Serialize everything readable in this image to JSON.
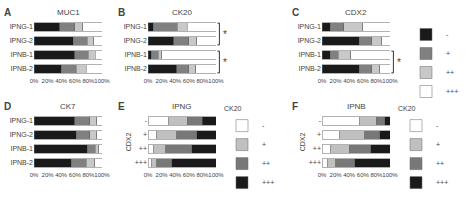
{
  "chart_data": [
    {
      "type": "bar",
      "orientation": "horizontal",
      "stacked": true,
      "grid": false,
      "title": "MUC1",
      "annotations": [
        {
          "text": "A"
        }
      ],
      "categories": [
        "IPNG-1",
        "IPNG-2",
        "IPNB-1",
        "IPNB-2"
      ],
      "series": [
        {
          "name": "-",
          "color": "#1a1a1a",
          "values": [
            0.38,
            0.58,
            0.6,
            0.4
          ]
        },
        {
          "name": "+",
          "color": "#808080",
          "values": [
            0.22,
            0.2,
            0.2,
            0.22
          ]
        },
        {
          "name": "++",
          "color": "#c8c8c8",
          "values": [
            0.12,
            0.1,
            0.1,
            0.15
          ]
        },
        {
          "name": "+++",
          "color": "#ffffff",
          "values": [
            0.28,
            0.12,
            0.1,
            0.23
          ]
        }
      ],
      "xlim": [
        0,
        1
      ],
      "xticks": [
        {
          "value": 0,
          "label": "0%"
        },
        {
          "value": 0.2,
          "label": "20%"
        },
        {
          "value": 0.4,
          "label": "40%"
        },
        {
          "value": 0.6,
          "label": "60%"
        },
        {
          "value": 0.8,
          "label": "80%"
        },
        {
          "value": 1.0,
          "label": "100%"
        }
      ]
    },
    {
      "type": "bar",
      "orientation": "horizontal",
      "stacked": true,
      "grid": false,
      "title": "CK20",
      "annotations": [
        {
          "text": "B"
        },
        {
          "text": "*",
          "categories": [
            "IPNG-1",
            "IPNG-2"
          ]
        },
        {
          "text": "*",
          "categories": [
            "IPNB-1",
            "IPNB-2"
          ]
        }
      ],
      "categories": [
        "IPNG-1",
        "IPNG-2",
        "IPNB-1",
        "IPNB-2"
      ],
      "series": [
        {
          "name": "-",
          "color": "#1a1a1a",
          "values": [
            0.08,
            0.38,
            0.05,
            0.42
          ]
        },
        {
          "name": "+",
          "color": "#808080",
          "values": [
            0.35,
            0.22,
            0.1,
            0.18
          ]
        },
        {
          "name": "++",
          "color": "#c8c8c8",
          "values": [
            0.15,
            0.12,
            0.05,
            0.1
          ]
        },
        {
          "name": "+++",
          "color": "#ffffff",
          "values": [
            0.42,
            0.28,
            0.8,
            0.3
          ]
        }
      ],
      "xlim": [
        0,
        1
      ],
      "xticks": [
        {
          "value": 0,
          "label": "0%"
        },
        {
          "value": 0.2,
          "label": "20%"
        },
        {
          "value": 0.4,
          "label": "40%"
        },
        {
          "value": 0.6,
          "label": "60%"
        },
        {
          "value": 0.8,
          "label": "80%"
        },
        {
          "value": 1.0,
          "label": "100%"
        }
      ]
    },
    {
      "type": "bar",
      "orientation": "horizontal",
      "stacked": true,
      "grid": false,
      "title": "CDX2",
      "legend": "right",
      "annotations": [
        {
          "text": "C"
        },
        {
          "text": "*",
          "categories": [
            "IPNB-1",
            "IPNB-2"
          ]
        }
      ],
      "categories": [
        "IPNG-1",
        "IPNG-2",
        "IPNB-1",
        "IPNB-2"
      ],
      "series": [
        {
          "name": "-",
          "color": "#1a1a1a",
          "values": [
            0.12,
            0.55,
            0.12,
            0.55
          ]
        },
        {
          "name": "+",
          "color": "#808080",
          "values": [
            0.2,
            0.18,
            0.12,
            0.18
          ]
        },
        {
          "name": "++",
          "color": "#c8c8c8",
          "values": [
            0.28,
            0.15,
            0.18,
            0.12
          ]
        },
        {
          "name": "+++",
          "color": "#ffffff",
          "values": [
            0.4,
            0.12,
            0.58,
            0.15
          ]
        }
      ],
      "xlim": [
        0,
        1
      ],
      "xticks": [
        {
          "value": 0,
          "label": "0%"
        },
        {
          "value": 0.2,
          "label": "20%"
        },
        {
          "value": 0.4,
          "label": "40%"
        },
        {
          "value": 0.6,
          "label": "60%"
        },
        {
          "value": 0.8,
          "label": "80%"
        },
        {
          "value": 1.0,
          "label": "100%"
        }
      ]
    },
    {
      "type": "bar",
      "orientation": "horizontal",
      "stacked": true,
      "grid": false,
      "title": "CK7",
      "annotations": [
        {
          "text": "D"
        }
      ],
      "categories": [
        "IPNG-1",
        "IPNG-2",
        "IPNB-1",
        "IPNB-2"
      ],
      "series": [
        {
          "name": "-",
          "color": "#1a1a1a",
          "values": [
            0.6,
            0.62,
            0.78,
            0.55
          ]
        },
        {
          "name": "+",
          "color": "#808080",
          "values": [
            0.22,
            0.2,
            0.12,
            0.22
          ]
        },
        {
          "name": "++",
          "color": "#c8c8c8",
          "values": [
            0.1,
            0.1,
            0.05,
            0.12
          ]
        },
        {
          "name": "+++",
          "color": "#ffffff",
          "values": [
            0.08,
            0.08,
            0.05,
            0.11
          ]
        }
      ],
      "xlim": [
        0,
        1
      ],
      "xticks": [
        {
          "value": 0,
          "label": "0%"
        },
        {
          "value": 0.2,
          "label": "20%"
        },
        {
          "value": 0.4,
          "label": "40%"
        },
        {
          "value": 0.6,
          "label": "60%"
        },
        {
          "value": 0.8,
          "label": "80%"
        },
        {
          "value": 1.0,
          "label": "100%"
        }
      ]
    },
    {
      "type": "bar",
      "orientation": "horizontal",
      "stacked": true,
      "grid": false,
      "title": "IPNG",
      "y_label": "CDX2",
      "legend": "right",
      "legend_title": "CK20",
      "annotations": [
        {
          "text": "E"
        }
      ],
      "categories": [
        "-",
        "+",
        "++",
        "+++"
      ],
      "series": [
        {
          "name": "-",
          "color": "#ffffff",
          "values": [
            0.3,
            0.12,
            0.08,
            0.05
          ]
        },
        {
          "name": "+",
          "color": "#c0c0c0",
          "values": [
            0.28,
            0.3,
            0.18,
            0.08
          ]
        },
        {
          "name": "++",
          "color": "#787878",
          "values": [
            0.22,
            0.3,
            0.38,
            0.22
          ]
        },
        {
          "name": "+++",
          "color": "#1a1a1a",
          "values": [
            0.2,
            0.28,
            0.36,
            0.65
          ]
        }
      ],
      "xlim": [
        0,
        1
      ],
      "xticks": [
        {
          "value": 0,
          "label": "0%"
        },
        {
          "value": 0.2,
          "label": "20%"
        },
        {
          "value": 0.4,
          "label": "40%"
        },
        {
          "value": 0.6,
          "label": "60%"
        },
        {
          "value": 0.8,
          "label": "80%"
        },
        {
          "value": 1.0,
          "label": "100%"
        }
      ]
    },
    {
      "type": "bar",
      "orientation": "horizontal",
      "stacked": true,
      "grid": false,
      "title": "IPNB",
      "y_label": "CDX2",
      "legend": "right",
      "legend_title": "CK20",
      "annotations": [
        {
          "text": "F"
        }
      ],
      "categories": [
        "-",
        "+",
        "++",
        "+++"
      ],
      "series": [
        {
          "name": "-",
          "color": "#ffffff",
          "values": [
            0.55,
            0.25,
            0.12,
            0.08
          ]
        },
        {
          "name": "+",
          "color": "#c0c0c0",
          "values": [
            0.25,
            0.38,
            0.28,
            0.12
          ]
        },
        {
          "name": "++",
          "color": "#787878",
          "values": [
            0.12,
            0.22,
            0.32,
            0.28
          ]
        },
        {
          "name": "+++",
          "color": "#1a1a1a",
          "values": [
            0.08,
            0.15,
            0.28,
            0.52
          ]
        }
      ],
      "xlim": [
        0,
        1
      ],
      "xticks": [
        {
          "value": 0,
          "label": "0%"
        },
        {
          "value": 0.2,
          "label": "20%"
        },
        {
          "value": 0.4,
          "label": "40%"
        },
        {
          "value": 0.6,
          "label": "60%"
        },
        {
          "value": 0.8,
          "label": "80%"
        },
        {
          "value": 1.0,
          "label": "100%"
        }
      ]
    }
  ]
}
